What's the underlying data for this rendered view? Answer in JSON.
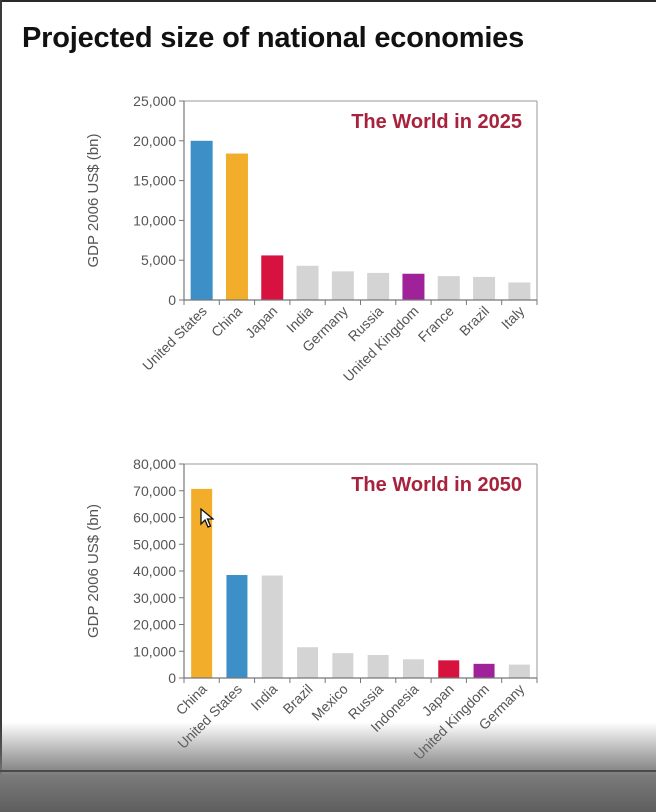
{
  "title": "Projected size of national economies",
  "colors": {
    "blue": "#3d8fc7",
    "orange": "#f2ad2a",
    "red": "#d8123f",
    "purple": "#a0229a",
    "gray": "#d4d4d4",
    "inset_title": "#a8223d",
    "axis": "#777777"
  },
  "chart_data": [
    {
      "type": "bar",
      "title": "The World in 2025",
      "ylabel": "GDP 2006 US$ (bn)",
      "xlabel": "",
      "ylim": [
        0,
        25000
      ],
      "yticks": [
        "0",
        "5,000",
        "10,000",
        "15,000",
        "20,000",
        "25,000"
      ],
      "categories": [
        "United States",
        "China",
        "Japan",
        "India",
        "Germany",
        "Russia",
        "United Kingdom",
        "France",
        "Brazil",
        "Italy"
      ],
      "values": [
        20000,
        18400,
        5600,
        4300,
        3600,
        3400,
        3300,
        3000,
        2900,
        2200
      ],
      "bar_colors": [
        "blue",
        "orange",
        "red",
        "gray",
        "gray",
        "gray",
        "purple",
        "gray",
        "gray",
        "gray"
      ],
      "legend": "none",
      "grid": false
    },
    {
      "type": "bar",
      "title": "The World in 2050",
      "ylabel": "GDP 2006 US$ (bn)",
      "xlabel": "",
      "ylim": [
        0,
        80000
      ],
      "yticks": [
        "0",
        "10,000",
        "20,000",
        "30,000",
        "40,000",
        "50,000",
        "60,000",
        "70,000",
        "80,000"
      ],
      "categories": [
        "China",
        "United States",
        "India",
        "Brazil",
        "Mexico",
        "Russia",
        "Indonesia",
        "Japan",
        "United Kingdom",
        "Germany"
      ],
      "values": [
        70700,
        38500,
        38300,
        11500,
        9300,
        8600,
        7000,
        6600,
        5300,
        5000
      ],
      "bar_colors": [
        "orange",
        "blue",
        "gray",
        "gray",
        "gray",
        "gray",
        "gray",
        "red",
        "purple",
        "gray"
      ],
      "legend": "none",
      "grid": false
    }
  ]
}
